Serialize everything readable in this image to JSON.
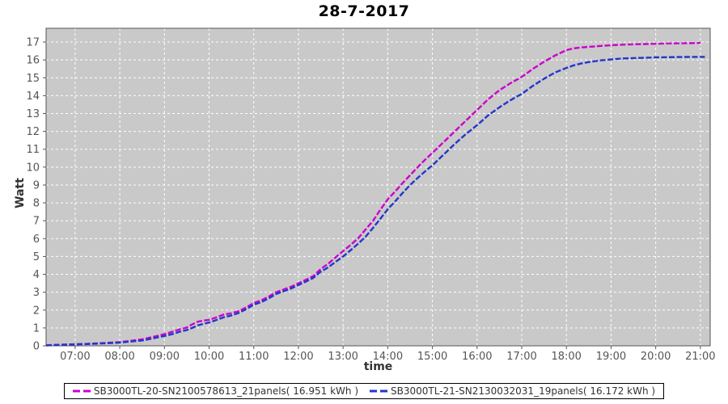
{
  "title": "28-7-2017",
  "axes": {
    "y_label": "Watt",
    "x_label": "time"
  },
  "colors": {
    "plot_background": "#C9C9C9",
    "grid": "#FFFFFF",
    "axis": "#555555",
    "tick_text": "#555555",
    "series1": "#CC00CC",
    "series2": "#2236CC",
    "title_text": "#000000",
    "page_background": "#FFFFFF"
  },
  "legend": {
    "items": [
      {
        "label": "SB3000TL-20-SN2100578613_21panels( 16.951 kWh )",
        "color": "#CC00CC"
      },
      {
        "label": "SB3000TL-21-SN2130032031_19panels( 16.172 kWh )",
        "color": "#2236CC"
      }
    ]
  },
  "chart_data": {
    "type": "line",
    "title": "28-7-2017",
    "xlabel": "time",
    "ylabel": "Watt",
    "x_unit": "hour_of_day",
    "xlim": [
      6.35,
      21.22
    ],
    "ylim": [
      0,
      17.77
    ],
    "grid": true,
    "legend_position": "bottom",
    "x_ticks": [
      {
        "value": 7,
        "label": "07:00"
      },
      {
        "value": 8,
        "label": "08:00"
      },
      {
        "value": 9,
        "label": "09:00"
      },
      {
        "value": 10,
        "label": "10:00"
      },
      {
        "value": 11,
        "label": "11:00"
      },
      {
        "value": 12,
        "label": "12:00"
      },
      {
        "value": 13,
        "label": "13:00"
      },
      {
        "value": 14,
        "label": "14:00"
      },
      {
        "value": 15,
        "label": "15:00"
      },
      {
        "value": 16,
        "label": "16:00"
      },
      {
        "value": 17,
        "label": "17:00"
      },
      {
        "value": 18,
        "label": "18:00"
      },
      {
        "value": 19,
        "label": "19:00"
      },
      {
        "value": 20,
        "label": "20:00"
      },
      {
        "value": 21,
        "label": "21:00"
      }
    ],
    "y_ticks": [
      0,
      1,
      2,
      3,
      4,
      5,
      6,
      7,
      8,
      9,
      10,
      11,
      12,
      13,
      14,
      15,
      16,
      17
    ],
    "series": [
      {
        "name": "SB3000TL-20-SN2100578613_21panels( 16.951 kWh )",
        "color": "#CC00CC",
        "final_kwh": 16.951,
        "x": [
          6.35,
          6.5,
          6.75,
          7.0,
          7.25,
          7.5,
          7.75,
          8.0,
          8.25,
          8.5,
          8.75,
          9.0,
          9.17,
          9.33,
          9.5,
          9.62,
          9.75,
          9.9,
          10.0,
          10.17,
          10.33,
          10.5,
          10.67,
          10.83,
          11.0,
          11.17,
          11.33,
          11.5,
          11.67,
          11.83,
          12.0,
          12.17,
          12.33,
          12.5,
          12.67,
          12.83,
          13.0,
          13.17,
          13.33,
          13.5,
          13.67,
          13.83,
          14.0,
          14.17,
          14.33,
          14.5,
          14.67,
          14.83,
          15.0,
          15.25,
          15.5,
          15.75,
          16.0,
          16.25,
          16.5,
          16.75,
          17.0,
          17.25,
          17.5,
          17.75,
          18.0,
          18.17,
          18.33,
          18.5,
          18.75,
          19.0,
          19.25,
          19.5,
          19.75,
          20.0,
          20.25,
          20.5,
          20.75,
          21.0
        ],
        "y": [
          0.03,
          0.05,
          0.07,
          0.09,
          0.11,
          0.14,
          0.17,
          0.21,
          0.28,
          0.36,
          0.5,
          0.65,
          0.78,
          0.92,
          1.02,
          1.2,
          1.35,
          1.42,
          1.45,
          1.6,
          1.75,
          1.82,
          1.95,
          2.15,
          2.4,
          2.55,
          2.75,
          3.0,
          3.15,
          3.3,
          3.5,
          3.7,
          3.9,
          4.3,
          4.6,
          4.95,
          5.3,
          5.65,
          6.0,
          6.5,
          7.0,
          7.6,
          8.2,
          8.65,
          9.1,
          9.55,
          10.0,
          10.4,
          10.8,
          11.4,
          12.0,
          12.6,
          13.2,
          13.8,
          14.3,
          14.7,
          15.05,
          15.5,
          15.9,
          16.25,
          16.55,
          16.65,
          16.7,
          16.73,
          16.78,
          16.82,
          16.85,
          16.87,
          16.89,
          16.9,
          16.92,
          16.93,
          16.94,
          16.95
        ]
      },
      {
        "name": "SB3000TL-21-SN2130032031_19panels( 16.172 kWh )",
        "color": "#2236CC",
        "final_kwh": 16.172,
        "x": [
          6.35,
          6.5,
          6.75,
          7.0,
          7.25,
          7.5,
          7.75,
          8.0,
          8.25,
          8.5,
          8.75,
          9.0,
          9.17,
          9.33,
          9.5,
          9.62,
          9.75,
          9.9,
          10.0,
          10.17,
          10.33,
          10.5,
          10.67,
          10.83,
          11.0,
          11.17,
          11.33,
          11.5,
          11.67,
          11.83,
          12.0,
          12.17,
          12.33,
          12.5,
          12.67,
          12.83,
          13.0,
          13.17,
          13.33,
          13.5,
          13.67,
          13.83,
          14.0,
          14.17,
          14.33,
          14.5,
          14.67,
          14.83,
          15.0,
          15.25,
          15.5,
          15.75,
          16.0,
          16.25,
          16.5,
          16.75,
          17.0,
          17.25,
          17.5,
          17.75,
          18.0,
          18.17,
          18.33,
          18.5,
          18.75,
          19.0,
          19.25,
          19.5,
          19.75,
          20.0,
          20.25,
          20.5,
          20.75,
          21.0,
          21.1
        ],
        "y": [
          0.02,
          0.04,
          0.06,
          0.08,
          0.1,
          0.12,
          0.15,
          0.18,
          0.24,
          0.3,
          0.42,
          0.55,
          0.65,
          0.78,
          0.88,
          1.0,
          1.15,
          1.25,
          1.3,
          1.45,
          1.6,
          1.7,
          1.85,
          2.05,
          2.3,
          2.45,
          2.65,
          2.9,
          3.05,
          3.2,
          3.4,
          3.6,
          3.8,
          4.15,
          4.4,
          4.7,
          5.0,
          5.35,
          5.7,
          6.1,
          6.6,
          7.1,
          7.65,
          8.1,
          8.55,
          9.0,
          9.4,
          9.75,
          10.1,
          10.7,
          11.3,
          11.85,
          12.35,
          12.9,
          13.35,
          13.75,
          14.1,
          14.55,
          14.95,
          15.3,
          15.55,
          15.7,
          15.8,
          15.88,
          15.97,
          16.03,
          16.08,
          16.1,
          16.12,
          16.14,
          16.15,
          16.16,
          16.17,
          16.17,
          16.17
        ]
      }
    ]
  }
}
